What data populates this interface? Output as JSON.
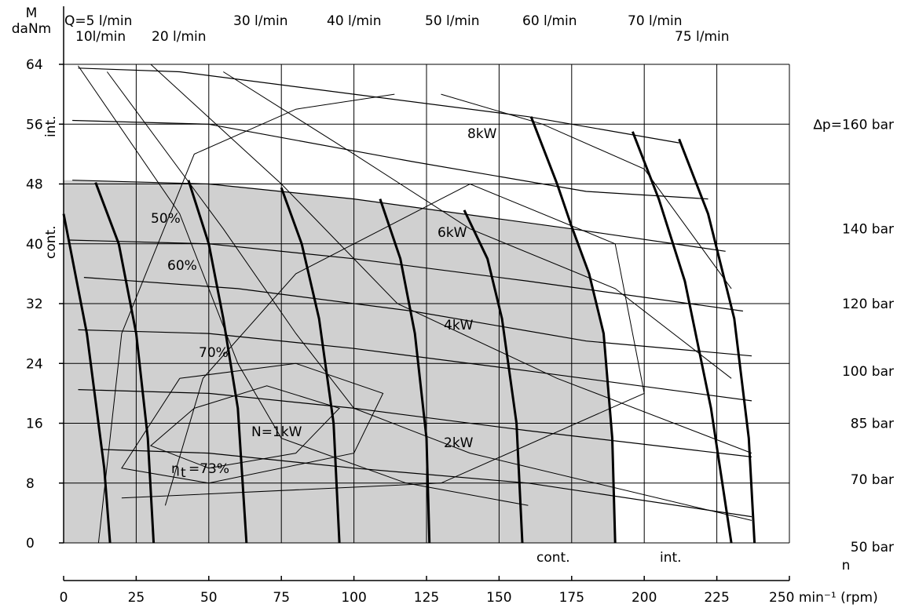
{
  "chart_data": {
    "type": "line",
    "title": "",
    "ylabel_top": "M",
    "ylabel_units": "daNm",
    "xlabel": "n",
    "x_unit_label": "250 min⁻¹ (rpm)",
    "xlim": [
      0,
      250
    ],
    "ylim": [
      0,
      64
    ],
    "x_ticks": [
      0,
      25,
      50,
      75,
      100,
      125,
      150,
      175,
      200,
      225,
      250
    ],
    "x_tick_labels": [
      "0",
      "25",
      "50",
      "75",
      "100",
      "125",
      "150",
      "175",
      "200",
      "225"
    ],
    "y_ticks": [
      0,
      8,
      16,
      24,
      32,
      40,
      48,
      56,
      64
    ],
    "y_tick_labels": [
      "0",
      "8",
      "16",
      "24",
      "32",
      "40",
      "48",
      "56",
      "64"
    ],
    "grid": true,
    "shaded_region_label": "cont.",
    "intermittent_label": "int.",
    "x_cont_label": "cont.",
    "x_int_label": "int.",
    "flow_lines": [
      {
        "name": "Q=5 l/min",
        "points": [
          [
            0,
            44
          ],
          [
            8,
            28
          ],
          [
            14,
            10
          ],
          [
            16,
            0
          ]
        ]
      },
      {
        "name": "10l/min",
        "points": [
          [
            11,
            48.2
          ],
          [
            19,
            40
          ],
          [
            25,
            28
          ],
          [
            29,
            14
          ],
          [
            31,
            0
          ]
        ]
      },
      {
        "name": "20 l/min",
        "points": [
          [
            43,
            48.5
          ],
          [
            50,
            40
          ],
          [
            55,
            30
          ],
          [
            60,
            18
          ],
          [
            63,
            0
          ]
        ]
      },
      {
        "name": "30 l/min",
        "points": [
          [
            75,
            47.5
          ],
          [
            82,
            40
          ],
          [
            88,
            30
          ],
          [
            93,
            16
          ],
          [
            95,
            0
          ]
        ]
      },
      {
        "name": "40 l/min",
        "points": [
          [
            109,
            46
          ],
          [
            116,
            38
          ],
          [
            121,
            28
          ],
          [
            125,
            14
          ],
          [
            126,
            0
          ]
        ]
      },
      {
        "name": "50 l/min",
        "points": [
          [
            138,
            44.5
          ],
          [
            146,
            38
          ],
          [
            151,
            30
          ],
          [
            156,
            16
          ],
          [
            158,
            0
          ]
        ]
      },
      {
        "name": "60 l/min",
        "points": [
          [
            175,
            42.3
          ],
          [
            181,
            36
          ],
          [
            186,
            28
          ],
          [
            189,
            14
          ],
          [
            190,
            0
          ]
        ]
      },
      {
        "name": "60 l/min int",
        "points": [
          [
            161,
            57
          ],
          [
            170,
            48
          ],
          [
            175,
            42.3
          ]
        ]
      },
      {
        "name": "70 l/min",
        "points": [
          [
            196,
            55
          ],
          [
            205,
            46
          ],
          [
            214,
            35
          ],
          [
            223,
            18
          ],
          [
            230,
            0
          ]
        ]
      },
      {
        "name": "75 l/min",
        "points": [
          [
            212,
            54
          ],
          [
            222,
            44
          ],
          [
            231,
            30
          ],
          [
            236,
            14
          ],
          [
            238,
            0
          ]
        ]
      }
    ],
    "pressure_lines": [
      {
        "name": "Δp=160 bar",
        "points": [
          [
            5,
            63.5
          ],
          [
            40,
            63
          ],
          [
            100,
            60
          ],
          [
            160,
            57
          ],
          [
            212,
            53.5
          ]
        ]
      },
      {
        "name": "140 bar",
        "points": [
          [
            3,
            56.5
          ],
          [
            50,
            56
          ],
          [
            120,
            51
          ],
          [
            180,
            47
          ],
          [
            222,
            46
          ]
        ]
      },
      {
        "name": "120 bar",
        "points": [
          [
            3,
            48.5
          ],
          [
            50,
            48
          ],
          [
            100,
            46
          ],
          [
            175,
            42
          ],
          [
            228,
            39
          ]
        ]
      },
      {
        "name": "100 bar",
        "points": [
          [
            2,
            40.5
          ],
          [
            50,
            40
          ],
          [
            100,
            38
          ],
          [
            160,
            35
          ],
          [
            234,
            31
          ]
        ]
      },
      {
        "name": "85 bar",
        "points": [
          [
            7,
            35.5
          ],
          [
            60,
            34
          ],
          [
            120,
            31
          ],
          [
            180,
            27
          ],
          [
            237,
            25
          ]
        ]
      },
      {
        "name": "70 bar",
        "points": [
          [
            5,
            28.5
          ],
          [
            50,
            28
          ],
          [
            100,
            26
          ],
          [
            160,
            23
          ],
          [
            237,
            19
          ]
        ]
      },
      {
        "name": "50 bar",
        "points": [
          [
            5,
            20.5
          ],
          [
            50,
            20
          ],
          [
            100,
            18
          ],
          [
            160,
            15
          ],
          [
            237,
            11.5
          ]
        ]
      },
      {
        "name": "30 bar",
        "points": [
          [
            13,
            12.5
          ],
          [
            50,
            12
          ],
          [
            100,
            10
          ],
          [
            160,
            8
          ],
          [
            237,
            3.5
          ]
        ]
      }
    ],
    "pressure_labels": [
      "∆p=160  bar",
      "140  bar",
      "120  bar",
      "100  bar",
      "85  bar",
      "70  bar",
      "50  bar",
      "30  bar"
    ],
    "power_lines": [
      {
        "name": "N=1kW",
        "points": [
          [
            5,
            63.8
          ],
          [
            40,
            44
          ],
          [
            60,
            24
          ],
          [
            75,
            14
          ],
          [
            118,
            8
          ],
          [
            160,
            5
          ]
        ]
      },
      {
        "name": "2kW",
        "points": [
          [
            15,
            63
          ],
          [
            55,
            42
          ],
          [
            80,
            28
          ],
          [
            100,
            18
          ],
          [
            140,
            12
          ],
          [
            237,
            3
          ]
        ]
      },
      {
        "name": "4kW",
        "points": [
          [
            30,
            64
          ],
          [
            75,
            48
          ],
          [
            115,
            32
          ],
          [
            170,
            22
          ],
          [
            237,
            12
          ]
        ]
      },
      {
        "name": "6kW",
        "points": [
          [
            55,
            63
          ],
          [
            100,
            52
          ],
          [
            140,
            42
          ],
          [
            190,
            34
          ],
          [
            230,
            22
          ]
        ]
      },
      {
        "name": "8kW",
        "points": [
          [
            130,
            60
          ],
          [
            165,
            56
          ],
          [
            200,
            50
          ],
          [
            230,
            34
          ]
        ]
      }
    ],
    "power_labels": [
      "N=1kW",
      "2kW",
      "4kW",
      "6kW",
      "8kW"
    ],
    "efficiency_curves": [
      {
        "name": "50%",
        "points": [
          [
            12,
            0
          ],
          [
            20,
            28
          ],
          [
            45,
            52
          ],
          [
            80,
            58
          ],
          [
            114,
            60
          ]
        ]
      },
      {
        "name": "60%",
        "points": [
          [
            35,
            5
          ],
          [
            48,
            22
          ],
          [
            80,
            36
          ],
          [
            140,
            48
          ],
          [
            190,
            40
          ],
          [
            200,
            20
          ],
          [
            130,
            8
          ],
          [
            20,
            6
          ]
        ]
      },
      {
        "name": "70%",
        "points": [
          [
            40,
            22
          ],
          [
            80,
            24
          ],
          [
            110,
            20
          ],
          [
            100,
            12
          ],
          [
            50,
            8
          ],
          [
            20,
            10
          ],
          [
            40,
            22
          ]
        ]
      },
      {
        "name": "ηt=73%",
        "points": [
          [
            45,
            18
          ],
          [
            70,
            21
          ],
          [
            95,
            18
          ],
          [
            80,
            12
          ],
          [
            50,
            10
          ],
          [
            30,
            13
          ],
          [
            45,
            18
          ]
        ]
      }
    ],
    "efficiency_labels": [
      "50%",
      "60%",
      "70%",
      "η",
      "t",
      "=73%"
    ],
    "flow_labels": [
      "Q=5  l/min",
      "10l/min",
      "20  l/min",
      "30  l/min",
      "40  l/min",
      "50  l/min",
      "60  l/min",
      "70  l/min",
      "75  l/min"
    ]
  }
}
